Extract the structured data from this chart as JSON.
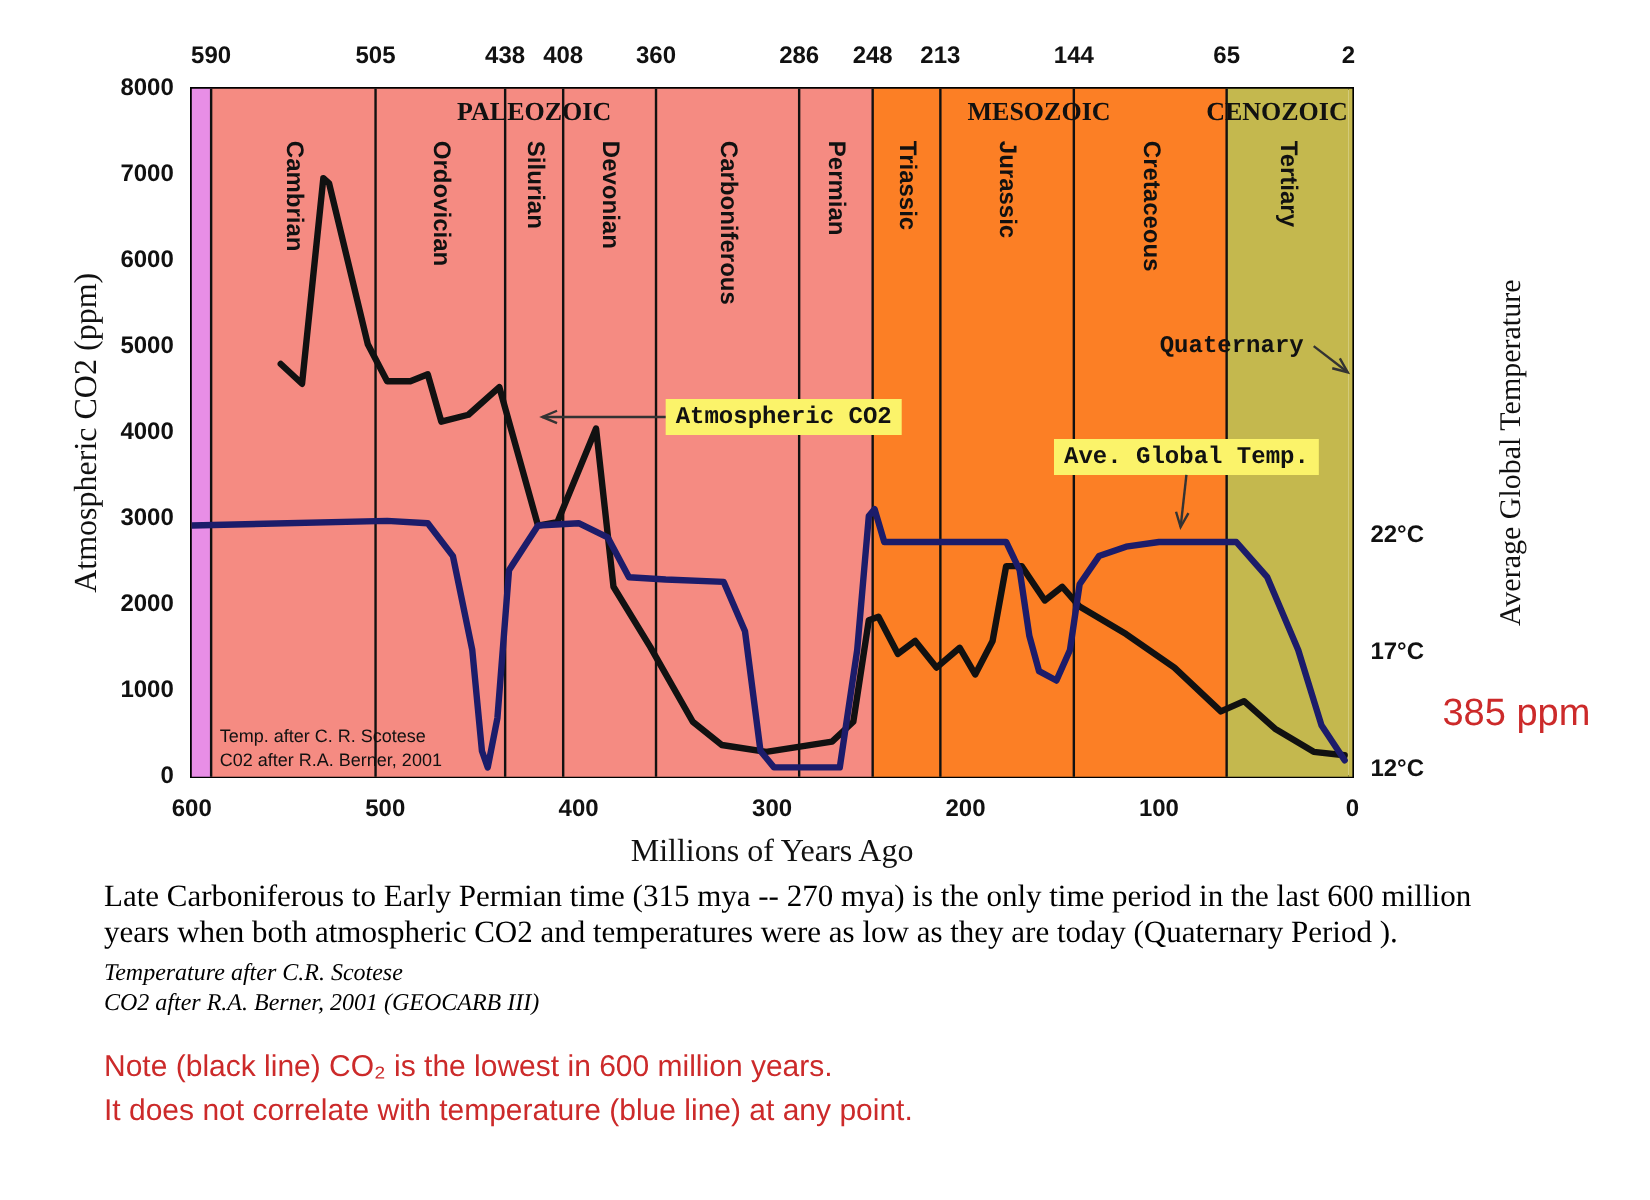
{
  "chart_data": {
    "type": "line",
    "xlabel": "Millions of Years Ago",
    "ylabel": "Atmospheric CO2 (ppm)",
    "y2label": "Average Global Temperature",
    "xlim": [
      600,
      0
    ],
    "xticks": [
      600,
      500,
      400,
      300,
      200,
      100,
      0
    ],
    "x2lim": [
      600,
      0
    ],
    "x2ticks": [
      590,
      505,
      438,
      408,
      360,
      286,
      248,
      213,
      144,
      65,
      2
    ],
    "ylim": [
      0,
      8000
    ],
    "yticks": [
      0,
      1000,
      2000,
      3000,
      4000,
      5000,
      6000,
      7000,
      8000
    ],
    "y2lim": [
      11.7,
      41
    ],
    "y2ticks": [
      {
        "value": 12,
        "label": "12°C"
      },
      {
        "value": 17,
        "label": "17°C"
      },
      {
        "value": 22,
        "label": "22°C"
      }
    ],
    "grid": false,
    "legend": false,
    "marker": "none",
    "line_style": "solid",
    "series": [
      {
        "color": "#1c1c6a",
        "axis": "y2",
        "x": [
          600,
          499,
          478,
          465,
          455,
          450,
          447,
          442,
          436,
          421,
          400,
          385,
          374,
          355,
          325,
          314,
          306,
          299,
          265,
          256,
          250,
          247,
          242,
          203,
          179,
          172,
          167,
          162,
          153,
          146,
          141,
          131,
          117,
          100,
          60,
          44,
          28,
          16,
          4
        ],
        "values": [
          22.4,
          22.6,
          22.5,
          21.1,
          17.1,
          12.8,
          12.1,
          14.2,
          20.5,
          22.4,
          22.5,
          21.9,
          20.2,
          20.1,
          20.0,
          17.9,
          12.8,
          12.1,
          12.1,
          17.1,
          22.8,
          23.1,
          21.7,
          21.7,
          21.7,
          20.5,
          17.7,
          16.2,
          15.8,
          17.1,
          19.9,
          21.1,
          21.5,
          21.7,
          21.7,
          20.2,
          17.1,
          13.9,
          12.4
        ]
      },
      {
        "color": "#111111",
        "x": [
          554,
          543,
          532,
          529,
          509,
          499,
          487,
          478,
          471,
          457,
          441,
          421,
          411,
          391,
          382,
          363,
          341,
          326,
          303,
          269,
          258,
          250,
          245,
          235,
          226,
          215,
          203,
          195,
          186,
          179,
          171,
          159,
          150,
          141,
          117,
          92,
          68,
          56,
          40,
          20,
          4
        ],
        "values": [
          4800,
          4570,
          6960,
          6900,
          5030,
          4600,
          4600,
          4680,
          4130,
          4210,
          4530,
          2920,
          2960,
          4050,
          2210,
          1510,
          640,
          370,
          290,
          410,
          640,
          1820,
          1860,
          1430,
          1580,
          1270,
          1500,
          1190,
          1580,
          2450,
          2450,
          2050,
          2210,
          1980,
          1660,
          1270,
          760,
          880,
          560,
          290,
          250
        ]
      }
    ],
    "ref_lines": [
      {
        "axis": "x",
        "value": 590
      },
      {
        "axis": "x",
        "value": 505
      },
      {
        "axis": "x",
        "value": 438
      },
      {
        "axis": "x",
        "value": 408
      },
      {
        "axis": "x",
        "value": 360
      },
      {
        "axis": "x",
        "value": 286
      },
      {
        "axis": "x",
        "value": 248
      },
      {
        "axis": "x",
        "value": 213
      },
      {
        "axis": "x",
        "value": 144
      },
      {
        "axis": "x",
        "value": 65
      }
    ],
    "bands": [
      {
        "axis": "x",
        "from": 600,
        "to": 590,
        "color": "#e88ee6"
      },
      {
        "axis": "x",
        "from": 590,
        "to": 505,
        "label": "Cambrian",
        "color": "#f58b82"
      },
      {
        "axis": "x",
        "from": 505,
        "to": 438,
        "label": "Ordovician",
        "color": "#f58b82"
      },
      {
        "axis": "x",
        "from": 438,
        "to": 408,
        "label": "Silurian",
        "color": "#f58b82"
      },
      {
        "axis": "x",
        "from": 408,
        "to": 360,
        "label": "Devonian",
        "color": "#f58b82"
      },
      {
        "axis": "x",
        "from": 360,
        "to": 286,
        "label": "Carboniferous",
        "color": "#f58b82"
      },
      {
        "axis": "x",
        "from": 286,
        "to": 248,
        "label": "Permian",
        "color": "#f58b82"
      },
      {
        "axis": "x",
        "from": 248,
        "to": 213,
        "label": "Triassic",
        "color": "#fc7f25"
      },
      {
        "axis": "x",
        "from": 213,
        "to": 144,
        "label": "Jurassic",
        "color": "#fc7f25"
      },
      {
        "axis": "x",
        "from": 144,
        "to": 65,
        "label": "Cretaceous",
        "color": "#fc7f25"
      },
      {
        "axis": "x",
        "from": 65,
        "to": 2,
        "label": "Tertiary",
        "color": "#c4b84e"
      },
      {
        "axis": "x",
        "from": 2,
        "to": 0,
        "color": "#c4b84e"
      }
    ],
    "annotations": [
      "PALEOZOIC",
      "MESOZOIC",
      "CENOZOIC",
      "Atmospheric CO2",
      "Ave. Global Temp.",
      "Quaternary",
      "385 ppm",
      "Temp. after C. R. Scotese",
      "C02 after R.A. Berner, 2001",
      "Late Carboniferous to Early Permian time (315 mya -- 270 mya) is the only time period in the last 600 million years when both atmospheric CO2 and temperatures were as low as they are today (Quaternary Period ).",
      "Temperature after C.R. Scotese",
      "CO2 after R.A. Berner, 2001 (GEOCARB III)",
      "Note (black line) CO₂ is the lowest in 600 million years.",
      "It does not correlate with temperature (blue line) at any point."
    ]
  }
}
